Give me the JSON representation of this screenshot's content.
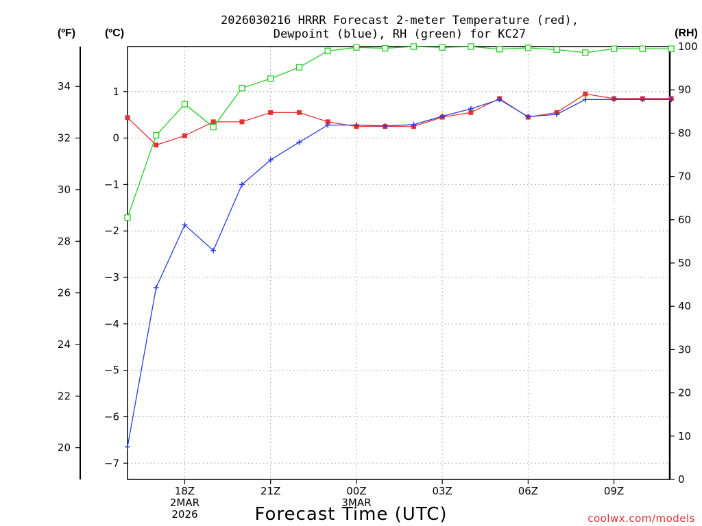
{
  "chart_data": {
    "type": "line",
    "title_line1": "2026030216 HRRR Forecast 2-meter Temperature (red),",
    "title_line2": "Dewpoint (blue), RH (green) for KC27",
    "xlabel": "Forecast Time (UTC)",
    "credit": "coolwx.com/models",
    "left_outer_unit": "(ºF)",
    "left_inner_unit": "(ºC)",
    "right_unit": "(RH)",
    "x_hours": [
      16,
      17,
      18,
      19,
      20,
      21,
      22,
      23,
      24,
      25,
      26,
      27,
      28,
      29,
      30,
      31,
      32,
      33,
      34,
      35
    ],
    "x_range": [
      16,
      34.95
    ],
    "x_ticks": [
      {
        "hour": 18,
        "lines": [
          "18Z",
          "2MAR",
          "2026"
        ]
      },
      {
        "hour": 21,
        "lines": [
          "21Z"
        ]
      },
      {
        "hour": 24,
        "lines": [
          "00Z",
          "3MAR"
        ]
      },
      {
        "hour": 27,
        "lines": [
          "03Z"
        ]
      },
      {
        "hour": 30,
        "lines": [
          "06Z"
        ]
      },
      {
        "hour": 33,
        "lines": [
          "09Z"
        ]
      }
    ],
    "celsius_axis": {
      "range": [
        -7.35,
        1.97
      ],
      "ticks": [
        -7,
        -6,
        -5,
        -4,
        -3,
        -2,
        -1,
        0,
        1
      ],
      "labels": [
        "−7",
        "−6",
        "−5",
        "−4",
        "−3",
        "−2",
        "−1",
        "0",
        "1"
      ]
    },
    "fahrenheit_axis": {
      "ticks": [
        20,
        22,
        24,
        26,
        28,
        30,
        32,
        34
      ],
      "labels": [
        "20",
        "22",
        "24",
        "26",
        "28",
        "30",
        "32",
        "34"
      ]
    },
    "rh_axis": {
      "range": [
        0,
        100
      ],
      "ticks": [
        0,
        10,
        20,
        30,
        40,
        50,
        60,
        70,
        80,
        90,
        100
      ],
      "labels": [
        "0",
        "10",
        "20",
        "30",
        "40",
        "50",
        "60",
        "70",
        "80",
        "90",
        "100"
      ]
    },
    "series": [
      {
        "name": "Temperature",
        "unit": "C",
        "color": "#e83030",
        "marker": "filled-square",
        "values": [
          0.44,
          -0.15,
          0.05,
          0.35,
          0.35,
          0.55,
          0.55,
          0.35,
          0.25,
          0.25,
          0.25,
          0.45,
          0.55,
          0.85,
          0.45,
          0.55,
          0.95,
          0.85,
          0.85,
          0.85
        ]
      },
      {
        "name": "Dewpoint",
        "unit": "C",
        "color": "#2a3adf",
        "marker": "plus",
        "values": [
          -6.65,
          -3.22,
          -1.87,
          -2.42,
          -1.0,
          -0.47,
          -0.09,
          0.28,
          0.28,
          0.26,
          0.29,
          0.47,
          0.63,
          0.83,
          0.46,
          0.51,
          0.83,
          0.83,
          0.83,
          0.83
        ]
      },
      {
        "name": "Relative Humidity",
        "unit": "%",
        "color": "#22cc22",
        "marker": "open-square",
        "values": [
          60.5,
          79.5,
          86.7,
          81.4,
          90.4,
          92.6,
          95.2,
          99.0,
          99.8,
          99.6,
          100.0,
          99.8,
          100.0,
          99.4,
          99.7,
          99.3,
          98.6,
          99.5,
          99.5,
          99.5
        ]
      }
    ]
  }
}
